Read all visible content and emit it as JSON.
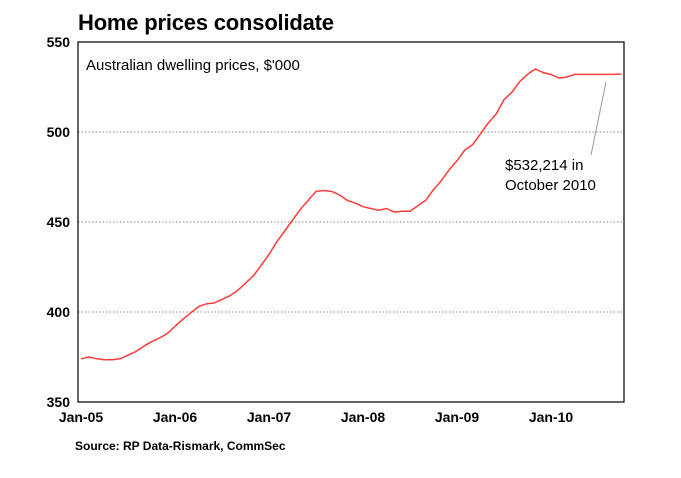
{
  "chart_data": {
    "type": "line",
    "title": "Home prices consolidate",
    "subtitle": "Australian dwelling prices, $'000",
    "source": "Source: RP Data-Rismark, CommSec",
    "xlabel": "",
    "ylabel": "",
    "ylim": [
      350,
      550
    ],
    "yticks": [
      "350",
      "400",
      "450",
      "500",
      "550"
    ],
    "xticks": [
      "Jan-05",
      "Jan-06",
      "Jan-07",
      "Jan-08",
      "Jan-09",
      "Jan-10"
    ],
    "grid": true,
    "annotation": {
      "line1": "$532,214 in",
      "line2": "October 2010"
    },
    "series": [
      {
        "color": "#ff3b3b",
        "x": [
          "2005-01",
          "2005-02",
          "2005-03",
          "2005-04",
          "2005-05",
          "2005-06",
          "2005-07",
          "2005-08",
          "2005-09",
          "2005-10",
          "2005-11",
          "2005-12",
          "2006-01",
          "2006-02",
          "2006-03",
          "2006-04",
          "2006-05",
          "2006-06",
          "2006-07",
          "2006-08",
          "2006-09",
          "2006-10",
          "2006-11",
          "2006-12",
          "2007-01",
          "2007-02",
          "2007-03",
          "2007-04",
          "2007-05",
          "2007-06",
          "2007-07",
          "2007-08",
          "2007-09",
          "2007-10",
          "2007-11",
          "2007-12",
          "2008-01",
          "2008-02",
          "2008-03",
          "2008-04",
          "2008-05",
          "2008-06",
          "2008-07",
          "2008-08",
          "2008-09",
          "2008-10",
          "2008-11",
          "2008-12",
          "2009-01",
          "2009-02",
          "2009-03",
          "2009-04",
          "2009-05",
          "2009-06",
          "2009-07",
          "2009-08",
          "2009-09",
          "2009-10",
          "2009-11",
          "2009-12",
          "2010-01",
          "2010-02",
          "2010-03",
          "2010-04",
          "2010-05",
          "2010-06",
          "2010-07",
          "2010-08",
          "2010-09",
          "2010-10"
        ],
        "values": [
          374,
          375,
          374,
          373.5,
          373.5,
          374,
          376,
          378,
          381,
          383.5,
          385.5,
          388,
          392,
          396,
          399.5,
          403,
          404.5,
          405,
          407,
          409,
          412,
          416,
          420,
          426,
          432,
          439,
          445,
          451,
          457,
          462,
          467,
          467.5,
          467,
          465,
          462,
          460.5,
          458.5,
          457.5,
          456.5,
          457.5,
          455.5,
          456,
          456,
          459,
          462,
          468,
          473,
          479,
          484,
          490,
          493,
          499,
          505,
          510,
          518,
          522,
          528,
          532,
          535,
          533,
          532,
          530,
          530.5,
          532,
          532,
          532,
          532,
          532,
          532,
          532.2
        ]
      }
    ]
  }
}
